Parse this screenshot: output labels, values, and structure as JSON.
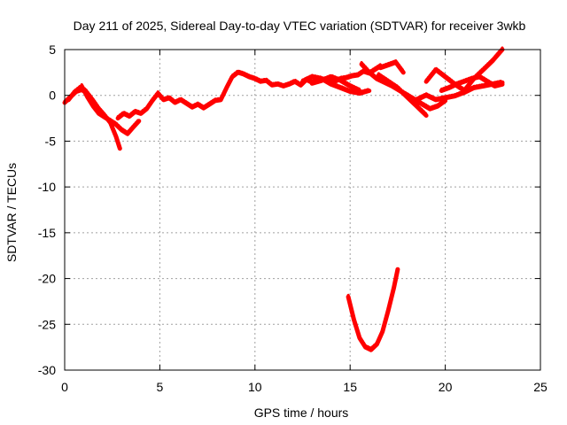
{
  "chart_data": {
    "type": "line",
    "title": "Day 211 of 2025, Sidereal Day-to-day VTEC variation (SDTVAR) for receiver 3wkb",
    "xlabel": "GPS time / hours",
    "ylabel": "SDTVAR / TECUs",
    "xlim": [
      0,
      25
    ],
    "ylim": [
      -30,
      5
    ],
    "xticks": [
      0,
      5,
      10,
      15,
      20,
      25
    ],
    "yticks": [
      5,
      0,
      -5,
      -10,
      -15,
      -20,
      -25,
      -30
    ],
    "grid": true,
    "legend": "none",
    "colors": {
      "series": "#ff0000",
      "grid": "#a0a0a0",
      "axis": "#000000"
    },
    "series": [
      {
        "x": [
          0.0,
          0.3,
          0.6,
          0.9,
          1.2,
          1.5,
          1.8,
          2.1,
          2.4,
          2.7,
          2.9
        ],
        "y": [
          -0.8,
          -0.2,
          0.4,
          0.6,
          0.2,
          -0.6,
          -1.5,
          -2.2,
          -3.0,
          -4.5,
          -5.8
        ]
      },
      {
        "x": [
          0.2,
          0.5,
          0.8,
          1.1,
          1.4,
          1.7
        ],
        "y": [
          -0.5,
          0.3,
          0.8,
          0.5,
          -0.5,
          -1.3
        ]
      },
      {
        "x": [
          0.9,
          1.2,
          1.5,
          1.8,
          2.1,
          2.4,
          2.7,
          3.0,
          3.3,
          3.6,
          3.9
        ],
        "y": [
          1.0,
          -0.2,
          -1.2,
          -2.0,
          -2.4,
          -2.8,
          -3.2,
          -3.8,
          -4.2,
          -3.5,
          -2.8
        ]
      },
      {
        "x": [
          2.8,
          3.1,
          3.4,
          3.7,
          4.0,
          4.3,
          4.6,
          4.9,
          5.2,
          5.5,
          5.8,
          6.1,
          6.4,
          6.7,
          7.0,
          7.3,
          7.6,
          7.9,
          8.2,
          8.5,
          8.8,
          9.1,
          9.4,
          9.7,
          10.0,
          10.3,
          10.6,
          10.9,
          11.2,
          11.5,
          11.8,
          12.1,
          12.4,
          12.7,
          13.0,
          13.3,
          13.6,
          13.9,
          14.2,
          14.5,
          14.8,
          15.1,
          15.4,
          15.7,
          16.0,
          16.3,
          16.6
        ],
        "y": [
          -2.5,
          -2.0,
          -2.3,
          -1.8,
          -2.0,
          -1.5,
          -0.6,
          0.2,
          -0.5,
          -0.3,
          -0.8,
          -0.5,
          -0.9,
          -1.3,
          -1.0,
          -1.4,
          -1.0,
          -0.6,
          -0.5,
          0.8,
          2.0,
          2.5,
          2.3,
          2.0,
          1.8,
          1.5,
          1.6,
          1.1,
          1.2,
          1.0,
          1.2,
          1.5,
          1.1,
          1.7,
          1.4,
          1.5,
          1.7,
          1.6,
          1.5,
          1.8,
          1.9,
          2.1,
          2.2,
          2.6,
          2.4,
          2.8,
          3.2
        ]
      },
      {
        "x": [
          12.5,
          13.0,
          13.5,
          14.0,
          14.5,
          15.0,
          15.5,
          16.0
        ],
        "y": [
          1.5,
          2.0,
          1.8,
          1.2,
          0.8,
          0.4,
          0.2,
          0.5
        ]
      },
      {
        "x": [
          13.0,
          13.5,
          14.0,
          14.5,
          15.0,
          15.5
        ],
        "y": [
          1.3,
          1.6,
          2.0,
          1.6,
          1.0,
          0.5
        ]
      },
      {
        "x": [
          15.6,
          16.0,
          16.4,
          16.8,
          17.2,
          17.6,
          18.0,
          18.4,
          18.8,
          19.2,
          19.6,
          20.0
        ],
        "y": [
          3.4,
          2.5,
          1.8,
          1.4,
          1.0,
          0.5,
          0.0,
          -0.5,
          -1.0,
          -1.5,
          -1.2,
          -0.6
        ]
      },
      {
        "x": [
          16.5,
          17.0,
          17.5,
          18.0,
          18.5,
          19.0
        ],
        "y": [
          2.2,
          1.5,
          0.8,
          -0.2,
          -1.2,
          -2.2
        ]
      },
      {
        "x": [
          16.6,
          17.0,
          17.4,
          17.8
        ],
        "y": [
          3.0,
          3.3,
          3.6,
          2.5
        ]
      },
      {
        "x": [
          18.5,
          19.0,
          19.5,
          20.0,
          20.5,
          21.0,
          21.5,
          22.0,
          22.5,
          23.0
        ],
        "y": [
          -0.5,
          0.0,
          -0.5,
          -0.3,
          -0.1,
          0.3,
          0.8,
          1.0,
          1.2,
          1.4
        ]
      },
      {
        "x": [
          19.0,
          19.5,
          20.0,
          20.5,
          21.0,
          21.5,
          22.0,
          22.5,
          23.0
        ],
        "y": [
          1.5,
          2.8,
          2.0,
          1.2,
          0.5,
          1.8,
          2.8,
          3.8,
          5.0
        ]
      },
      {
        "x": [
          19.8,
          20.2,
          20.6,
          21.0,
          21.4,
          21.8,
          22.2,
          22.6,
          23.0
        ],
        "y": [
          0.5,
          0.8,
          1.2,
          1.5,
          1.8,
          2.0,
          1.5,
          1.0,
          1.2
        ]
      },
      {
        "x": [
          14.9,
          15.2,
          15.5,
          15.8,
          16.1,
          16.4,
          16.7,
          17.0,
          17.3,
          17.5
        ],
        "y": [
          -22.0,
          -24.5,
          -26.5,
          -27.5,
          -27.8,
          -27.2,
          -25.8,
          -23.5,
          -21.0,
          -19.0
        ]
      }
    ]
  }
}
